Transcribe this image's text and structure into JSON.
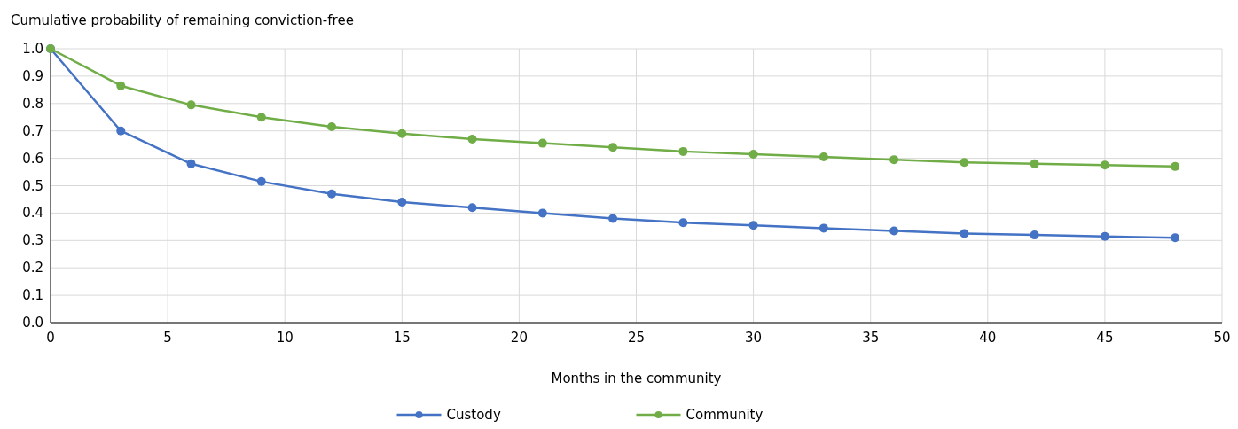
{
  "chart_data": {
    "type": "line",
    "ylabel": "Cumulative probability of remaining conviction-free",
    "xlabel": "Months in the community",
    "x": [
      0,
      3,
      6,
      9,
      12,
      15,
      18,
      21,
      24,
      27,
      30,
      33,
      36,
      39,
      42,
      45,
      48
    ],
    "series": [
      {
        "name": "Custody",
        "color": "#4472c4",
        "values": [
          1.0,
          0.7,
          0.58,
          0.515,
          0.47,
          0.44,
          0.42,
          0.4,
          0.38,
          0.365,
          0.355,
          0.345,
          0.335,
          0.325,
          0.32,
          0.315,
          0.31
        ]
      },
      {
        "name": "Community",
        "color": "#70ad47",
        "values": [
          1.0,
          0.865,
          0.795,
          0.75,
          0.715,
          0.69,
          0.67,
          0.655,
          0.64,
          0.625,
          0.615,
          0.605,
          0.595,
          0.585,
          0.58,
          0.575,
          0.57
        ]
      }
    ],
    "xlim": [
      0,
      50
    ],
    "xticks": [
      0,
      5,
      10,
      15,
      20,
      25,
      30,
      35,
      40,
      45,
      50
    ],
    "ylim": [
      0,
      1
    ],
    "yticks": [
      {
        "value": 0,
        "label": "0.0"
      },
      {
        "value": 0.1,
        "label": "0.1"
      },
      {
        "value": 0.2,
        "label": "0.2"
      },
      {
        "value": 0.3,
        "label": "0.3"
      },
      {
        "value": 0.4,
        "label": "0.4"
      },
      {
        "value": 0.5,
        "label": "0.5"
      },
      {
        "value": 0.6,
        "label": "0.6"
      },
      {
        "value": 0.7,
        "label": "0.7"
      },
      {
        "value": 0.8,
        "label": "0.8"
      },
      {
        "value": 0.9,
        "label": "0.9"
      },
      {
        "value": 1,
        "label": "1.0"
      }
    ],
    "grid": true,
    "legend": "bottom",
    "marker": "circle",
    "line_style": "solid"
  }
}
